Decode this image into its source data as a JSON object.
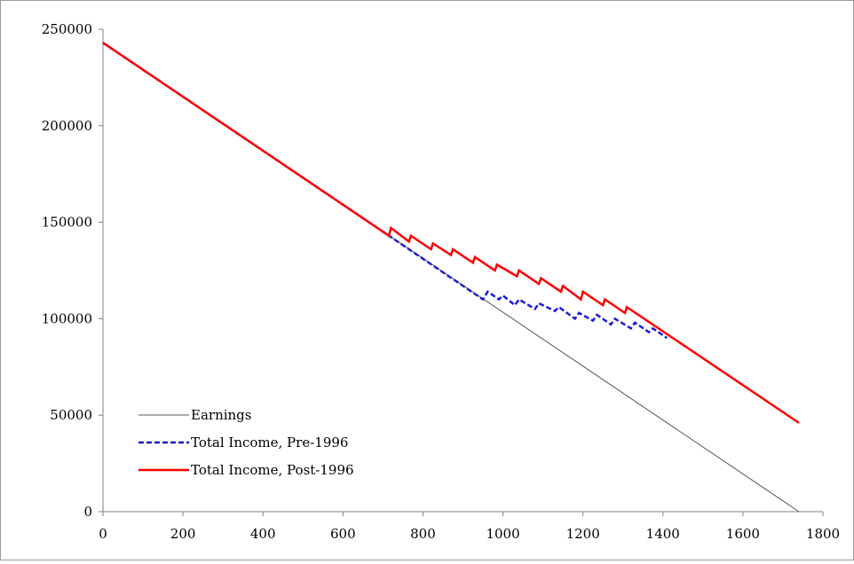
{
  "chart_data": {
    "type": "line",
    "title": "",
    "xlabel": "",
    "ylabel": "",
    "xlim": [
      0,
      1800
    ],
    "ylim": [
      0,
      250000
    ],
    "x_ticks": [
      0,
      200,
      400,
      600,
      800,
      1000,
      1200,
      1400,
      1600,
      1800
    ],
    "y_ticks": [
      0,
      50000,
      100000,
      150000,
      200000,
      250000
    ],
    "x_tick_labels": [
      "0",
      "200",
      "400",
      "600",
      "800",
      "1000",
      "1200",
      "1400",
      "1600",
      "1800"
    ],
    "y_tick_labels": [
      "0",
      "50000",
      "100000",
      "150000",
      "200000",
      "250000"
    ],
    "grid": false,
    "legend_position": "bottom-left",
    "series": [
      {
        "name": "Earnings",
        "color": "#555555",
        "style": "solid",
        "x": [
          0,
          1740
        ],
        "y": [
          243000,
          0
        ]
      },
      {
        "name": "Total Income, Pre-1996",
        "color": "#1c1cd4",
        "style": "dashed",
        "x": [
          0,
          715,
          950,
          962,
          990,
          1000,
          1030,
          1040,
          1080,
          1090,
          1130,
          1140,
          1180,
          1190,
          1225,
          1235,
          1270,
          1280,
          1320,
          1330,
          1365,
          1375,
          1410
        ],
        "y": [
          243000,
          143000,
          110000,
          114000,
          110000,
          112000,
          107000,
          110000,
          105000,
          108000,
          104000,
          106000,
          100000,
          103000,
          99000,
          102000,
          97000,
          100000,
          95000,
          98000,
          93000,
          95000,
          90000
        ]
      },
      {
        "name": "Total Income, Post-1996",
        "color": "#ff0000",
        "style": "solid",
        "x": [
          0,
          715,
          720,
          765,
          770,
          820,
          825,
          870,
          875,
          925,
          930,
          980,
          985,
          1035,
          1040,
          1090,
          1095,
          1145,
          1150,
          1195,
          1200,
          1250,
          1255,
          1305,
          1310,
          1740
        ],
        "y": [
          243000,
          143000,
          147000,
          140000,
          143000,
          136000,
          139000,
          133000,
          136000,
          129000,
          132000,
          125000,
          128000,
          122000,
          125000,
          118000,
          121000,
          114000,
          117000,
          110000,
          114000,
          107000,
          110000,
          103000,
          106000,
          46000
        ]
      }
    ]
  }
}
